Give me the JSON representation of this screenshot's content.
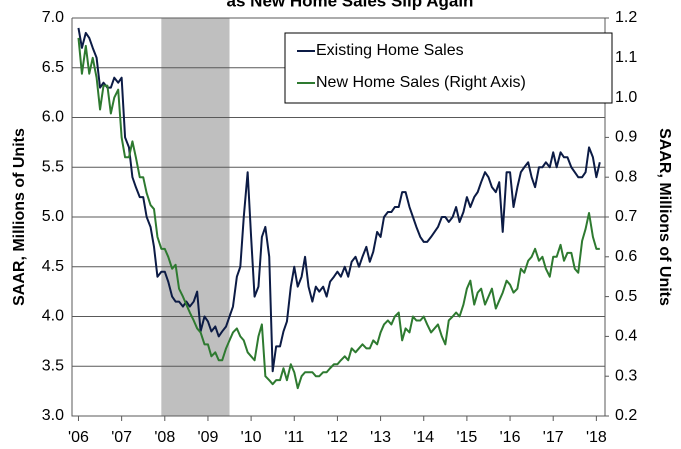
{
  "chart_data": {
    "type": "line",
    "title": "as New Home Sales Slip Again",
    "y_label": "SAAR, Millions of Units",
    "y2_label": "SAAR, Millions of Units",
    "x": [
      2006,
      2006.08,
      2006.17,
      2006.25,
      2006.33,
      2006.42,
      2006.5,
      2006.58,
      2006.67,
      2006.75,
      2006.83,
      2006.92,
      2007,
      2007.08,
      2007.17,
      2007.25,
      2007.33,
      2007.42,
      2007.5,
      2007.58,
      2007.67,
      2007.75,
      2007.83,
      2007.92,
      2008,
      2008.08,
      2008.17,
      2008.25,
      2008.33,
      2008.42,
      2008.5,
      2008.58,
      2008.67,
      2008.75,
      2008.83,
      2008.92,
      2009,
      2009.08,
      2009.17,
      2009.25,
      2009.33,
      2009.42,
      2009.5,
      2009.58,
      2009.67,
      2009.75,
      2009.83,
      2009.92,
      2010,
      2010.08,
      2010.17,
      2010.25,
      2010.33,
      2010.42,
      2010.5,
      2010.58,
      2010.67,
      2010.75,
      2010.83,
      2010.92,
      2011,
      2011.08,
      2011.17,
      2011.25,
      2011.33,
      2011.42,
      2011.5,
      2011.58,
      2011.67,
      2011.75,
      2011.83,
      2011.92,
      2012,
      2012.08,
      2012.17,
      2012.25,
      2012.33,
      2012.42,
      2012.5,
      2012.58,
      2012.67,
      2012.75,
      2012.83,
      2012.92,
      2013,
      2013.08,
      2013.17,
      2013.25,
      2013.33,
      2013.42,
      2013.5,
      2013.58,
      2013.67,
      2013.75,
      2013.83,
      2013.92,
      2014,
      2014.08,
      2014.17,
      2014.25,
      2014.33,
      2014.42,
      2014.5,
      2014.58,
      2014.67,
      2014.75,
      2014.83,
      2014.92,
      2015,
      2015.08,
      2015.17,
      2015.25,
      2015.33,
      2015.42,
      2015.5,
      2015.58,
      2015.67,
      2015.75,
      2015.83,
      2015.92,
      2016,
      2016.08,
      2016.17,
      2016.25,
      2016.33,
      2016.42,
      2016.5,
      2016.58,
      2016.67,
      2016.75,
      2016.83,
      2016.92,
      2017,
      2017.08,
      2017.17,
      2017.25,
      2017.33,
      2017.42,
      2017.5,
      2017.58,
      2017.67,
      2017.75,
      2017.83,
      2017.92,
      2018,
      2018.08
    ],
    "series": [
      {
        "name": "Existing Home Sales",
        "color": "#0c1b45",
        "values": [
          6.9,
          6.7,
          6.85,
          6.8,
          6.7,
          6.6,
          6.3,
          6.35,
          6.3,
          6.3,
          6.4,
          6.35,
          6.4,
          5.8,
          5.7,
          5.4,
          5.3,
          5.2,
          5.2,
          5.0,
          4.9,
          4.7,
          4.4,
          4.45,
          4.45,
          4.35,
          4.2,
          4.15,
          4.15,
          4.1,
          4.15,
          4.1,
          4.15,
          4.25,
          3.85,
          4.0,
          3.95,
          3.85,
          3.9,
          3.8,
          3.85,
          3.9,
          4.0,
          4.1,
          4.4,
          4.5,
          5.0,
          5.45,
          4.8,
          4.2,
          4.3,
          4.8,
          4.9,
          4.6,
          3.45,
          3.7,
          3.7,
          3.85,
          3.95,
          4.3,
          4.5,
          4.3,
          4.4,
          4.6,
          4.3,
          4.15,
          4.3,
          4.25,
          4.3,
          4.2,
          4.35,
          4.4,
          4.45,
          4.4,
          4.5,
          4.4,
          4.55,
          4.6,
          4.5,
          4.6,
          4.7,
          4.55,
          4.65,
          4.85,
          4.8,
          5.0,
          5.05,
          5.05,
          5.1,
          5.1,
          5.25,
          5.25,
          5.1,
          5.0,
          4.9,
          4.8,
          4.75,
          4.75,
          4.8,
          4.85,
          4.9,
          5.0,
          5.0,
          4.95,
          5.0,
          5.1,
          4.95,
          5.05,
          5.2,
          5.1,
          5.2,
          5.25,
          5.35,
          5.45,
          5.4,
          5.3,
          5.25,
          5.35,
          4.85,
          5.45,
          5.45,
          5.1,
          5.3,
          5.45,
          5.5,
          5.55,
          5.4,
          5.3,
          5.5,
          5.5,
          5.55,
          5.5,
          5.65,
          5.5,
          5.65,
          5.6,
          5.6,
          5.5,
          5.45,
          5.4,
          5.4,
          5.45,
          5.7,
          5.6,
          5.4,
          5.55
        ]
      },
      {
        "name": "New Home Sales (Right Axis)",
        "color": "#2e7a30",
        "axis": "y2",
        "values": [
          1.15,
          1.06,
          1.13,
          1.06,
          1.1,
          1.05,
          0.97,
          1.03,
          1.03,
          0.96,
          1.0,
          1.02,
          0.9,
          0.85,
          0.85,
          0.89,
          0.85,
          0.8,
          0.8,
          0.76,
          0.73,
          0.72,
          0.65,
          0.62,
          0.62,
          0.6,
          0.57,
          0.58,
          0.52,
          0.5,
          0.48,
          0.46,
          0.44,
          0.42,
          0.41,
          0.38,
          0.38,
          0.35,
          0.36,
          0.34,
          0.34,
          0.37,
          0.39,
          0.41,
          0.42,
          0.4,
          0.39,
          0.36,
          0.35,
          0.34,
          0.4,
          0.43,
          0.3,
          0.29,
          0.28,
          0.29,
          0.29,
          0.32,
          0.29,
          0.33,
          0.31,
          0.27,
          0.3,
          0.31,
          0.31,
          0.31,
          0.3,
          0.3,
          0.31,
          0.31,
          0.32,
          0.33,
          0.33,
          0.34,
          0.35,
          0.34,
          0.37,
          0.36,
          0.37,
          0.38,
          0.37,
          0.37,
          0.39,
          0.38,
          0.41,
          0.43,
          0.44,
          0.43,
          0.45,
          0.46,
          0.39,
          0.42,
          0.41,
          0.45,
          0.44,
          0.44,
          0.45,
          0.43,
          0.41,
          0.42,
          0.43,
          0.4,
          0.38,
          0.44,
          0.45,
          0.46,
          0.45,
          0.48,
          0.52,
          0.54,
          0.48,
          0.51,
          0.52,
          0.48,
          0.5,
          0.52,
          0.47,
          0.49,
          0.51,
          0.54,
          0.53,
          0.51,
          0.52,
          0.57,
          0.56,
          0.59,
          0.6,
          0.62,
          0.59,
          0.6,
          0.57,
          0.55,
          0.6,
          0.6,
          0.63,
          0.59,
          0.61,
          0.61,
          0.57,
          0.56,
          0.64,
          0.67,
          0.71,
          0.65,
          0.62,
          0.62
        ]
      }
    ],
    "recession": [
      2007.92,
      2009.5
    ],
    "recession_color": "#bfbfbf",
    "xlim": [
      2005.85,
      2018.2
    ],
    "xticks": [
      {
        "value": 2006,
        "label": "'06"
      },
      {
        "value": 2007,
        "label": "'07"
      },
      {
        "value": 2008,
        "label": "'08"
      },
      {
        "value": 2009,
        "label": "'09"
      },
      {
        "value": 2010,
        "label": "'10"
      },
      {
        "value": 2011,
        "label": "'11"
      },
      {
        "value": 2012,
        "label": "'12"
      },
      {
        "value": 2013,
        "label": "'13"
      },
      {
        "value": 2014,
        "label": "'14"
      },
      {
        "value": 2015,
        "label": "'15"
      },
      {
        "value": 2016,
        "label": "'16"
      },
      {
        "value": 2017,
        "label": "'17"
      },
      {
        "value": 2018,
        "label": "'18"
      }
    ],
    "ylim": [
      3,
      7
    ],
    "yticks": [
      {
        "value": 3,
        "label": "3.0"
      },
      3.5,
      {
        "value": 4,
        "label": "4.0"
      },
      4.5,
      {
        "value": 5,
        "label": "5.0"
      },
      5.5,
      {
        "value": 6,
        "label": "6.0"
      },
      6.5,
      {
        "value": 7,
        "label": "7.0"
      }
    ],
    "y2lim": [
      0.2,
      1.2
    ],
    "y2ticks": [
      0.2,
      0.3,
      0.4,
      0.5,
      0.6,
      0.7,
      0.8,
      0.9,
      {
        "value": 1,
        "label": "1.0"
      },
      1.1,
      1.2
    ],
    "grid": true,
    "legend": "top-right"
  }
}
